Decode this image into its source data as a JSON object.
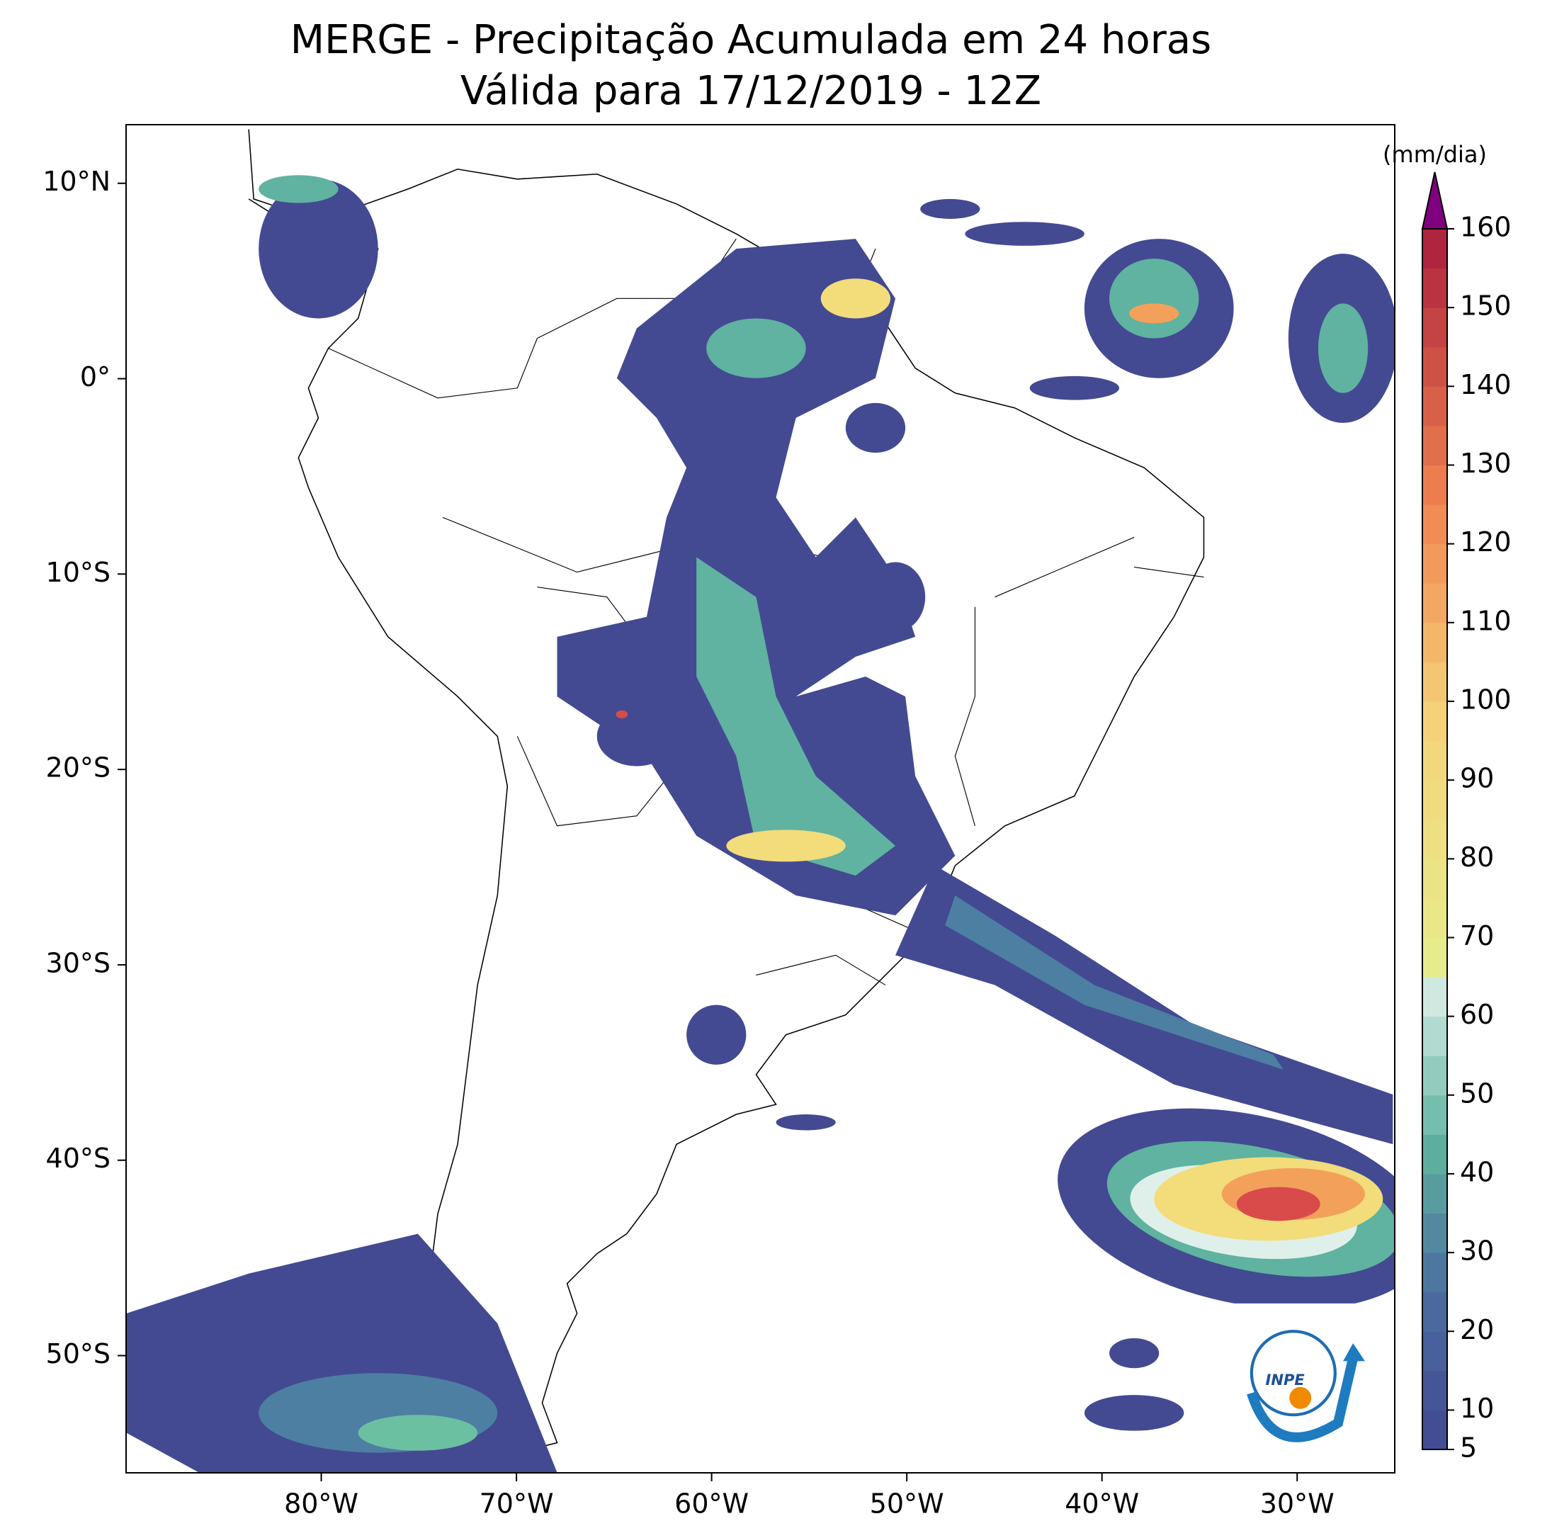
{
  "title": [
    "MERGE - Precipitação Acumulada em 24 horas",
    "Válida para 17/12/2019 - 12Z"
  ],
  "map": {
    "xlim": [
      -90,
      -25
    ],
    "ylim": [
      -56,
      13
    ],
    "xticks": [
      {
        "value": -80,
        "label": "80°W"
      },
      {
        "value": -70,
        "label": "70°W"
      },
      {
        "value": -60,
        "label": "60°W"
      },
      {
        "value": -50,
        "label": "50°W"
      },
      {
        "value": -40,
        "label": "40°W"
      },
      {
        "value": -30,
        "label": "30°W"
      }
    ],
    "yticks": [
      {
        "value": 10,
        "label": "10°N"
      },
      {
        "value": 0,
        "label": "0°"
      },
      {
        "value": -10,
        "label": "10°S"
      },
      {
        "value": -20,
        "label": "20°S"
      },
      {
        "value": -30,
        "label": "30°S"
      },
      {
        "value": -40,
        "label": "40°S"
      },
      {
        "value": -50,
        "label": "50°S"
      }
    ]
  },
  "colorbar": {
    "label": "(mm/dia)",
    "lim": [
      5,
      160
    ],
    "ticks": [
      5,
      10,
      20,
      30,
      40,
      50,
      60,
      70,
      80,
      90,
      100,
      110,
      120,
      130,
      140,
      150,
      160
    ]
  },
  "logo": {
    "text": "INPE"
  }
}
